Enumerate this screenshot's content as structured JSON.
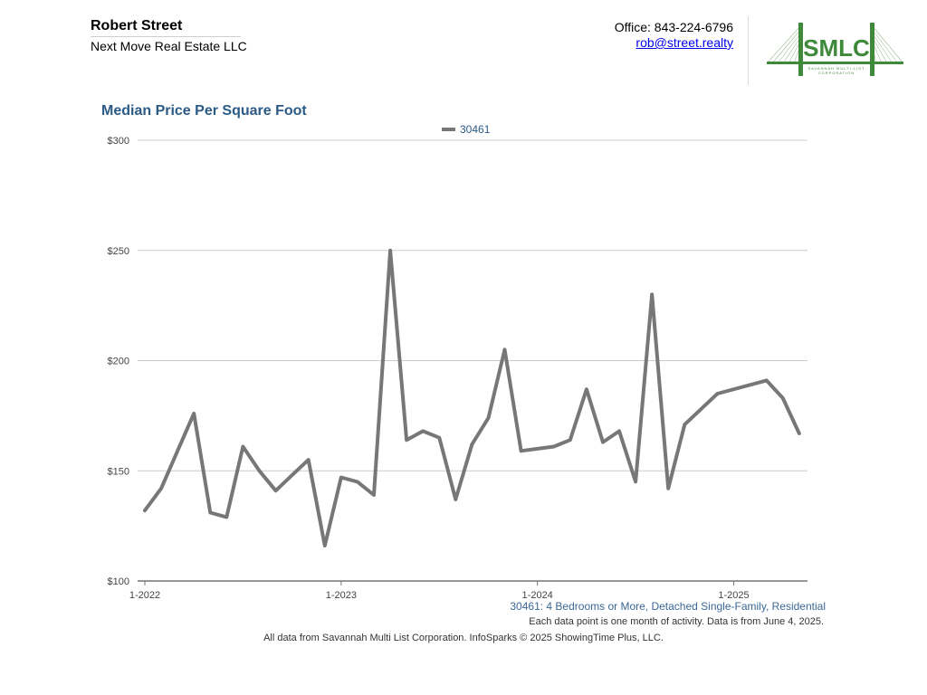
{
  "header": {
    "agent_name": "Robert Street",
    "company": "Next Move Real Estate LLC",
    "office_phone": "Office: 843-224-6796",
    "email": "rob@street.realty"
  },
  "logo": {
    "letters": "SMLC",
    "subtitle": "SAVANNAH MULTI-LIST CORPORATION",
    "color": "#3f8a3a"
  },
  "chart_data": {
    "type": "line",
    "title": "Median Price Per Square Foot",
    "xlabel": "",
    "ylabel": "",
    "x_tick_labels": [
      "1-2022",
      "1-2023",
      "1-2024",
      "1-2025"
    ],
    "y_tick_labels": [
      "$100",
      "$150",
      "$200",
      "$250",
      "$300"
    ],
    "ylim": [
      100,
      300
    ],
    "y_ticks": [
      100,
      150,
      200,
      250,
      300
    ],
    "grid": true,
    "legend_position": "top-center",
    "line_color": "#777777",
    "x": [
      "2022-01",
      "2022-02",
      "2022-03",
      "2022-04",
      "2022-05",
      "2022-06",
      "2022-07",
      "2022-08",
      "2022-09",
      "2022-10",
      "2022-11",
      "2022-12",
      "2023-01",
      "2023-02",
      "2023-03",
      "2023-04",
      "2023-05",
      "2023-06",
      "2023-07",
      "2023-08",
      "2023-09",
      "2023-10",
      "2023-11",
      "2023-12",
      "2024-01",
      "2024-02",
      "2024-03",
      "2024-04",
      "2024-05",
      "2024-06",
      "2024-07",
      "2024-08",
      "2024-09",
      "2024-10",
      "2024-11",
      "2024-12",
      "2025-01",
      "2025-02",
      "2025-03",
      "2025-04",
      "2025-05"
    ],
    "series": [
      {
        "name": "30461",
        "values": [
          132,
          142,
          159,
          176,
          131,
          129,
          161,
          150,
          141,
          148,
          155,
          116,
          147,
          145,
          139,
          250,
          164,
          168,
          165,
          137,
          162,
          174,
          205,
          159,
          160,
          161,
          164,
          187,
          163,
          168,
          145,
          230,
          142,
          171,
          178,
          185,
          null,
          null,
          191,
          183,
          167
        ]
      }
    ]
  },
  "footnotes": {
    "series_desc": "30461: 4 Bedrooms or More, Detached Single-Family, Residential",
    "data_note": "Each data point is one month of activity. Data is from June 4, 2025.",
    "source": "All data from Savannah Multi List Corporation. InfoSparks © 2025 ShowingTime Plus, LLC."
  }
}
